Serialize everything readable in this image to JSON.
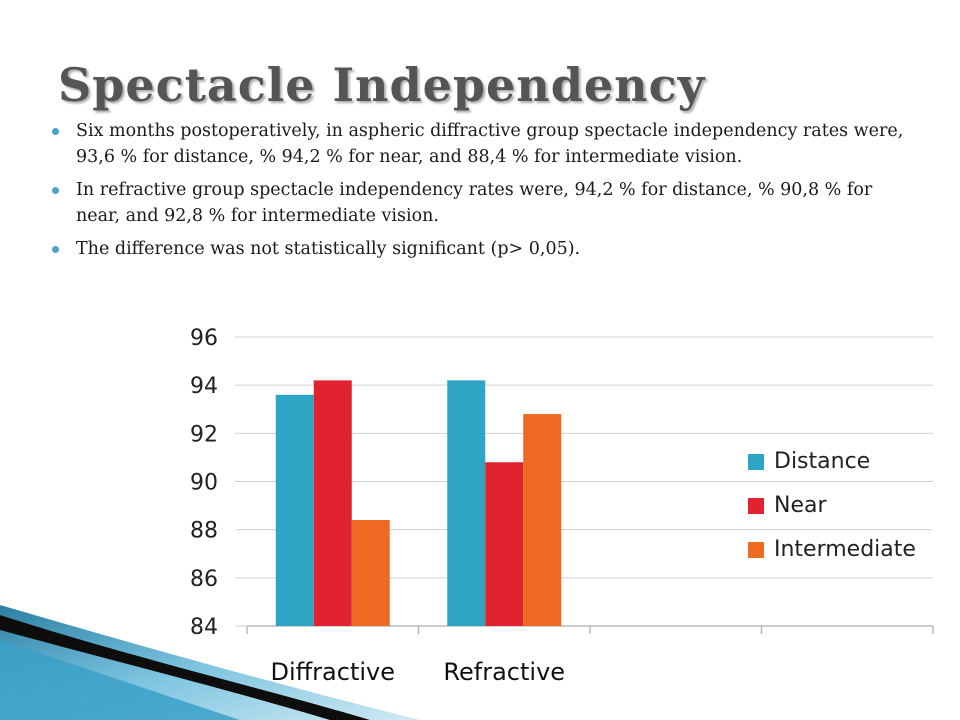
{
  "slide": {
    "title": "Spectacle Independency",
    "bullets": [
      "Six months postoperatively, in aspheric diffractive group spectacle independency rates were, 93,6 % for distance, % 94,2 % for near, and 88,4 % for intermediate vision.",
      "In refractive group spectacle  independency rates were, 94,2 % for distance, % 90,8 % for near, and 92,8 % for intermediate vision.",
      "The difference was not statistically significant (p> 0,05)."
    ],
    "bullet_color": "#4aa3c8"
  },
  "chart_data": {
    "type": "bar",
    "categories": [
      "Diffractive",
      "Refractive",
      "",
      ""
    ],
    "series": [
      {
        "name": "Distance",
        "values": [
          93.6,
          94.2,
          null,
          null
        ],
        "color": "#2ea5c4"
      },
      {
        "name": "Near",
        "values": [
          94.2,
          90.8,
          null,
          null
        ],
        "color": "#e0232e"
      },
      {
        "name": "Intermediate",
        "values": [
          88.4,
          92.8,
          null,
          null
        ],
        "color": "#ee6a22"
      }
    ],
    "ylim": [
      84,
      96
    ],
    "yticks": [
      84,
      86,
      88,
      90,
      92,
      94,
      96
    ],
    "grid": true,
    "legend": "right",
    "title": "",
    "xlabel": "",
    "ylabel": ""
  }
}
